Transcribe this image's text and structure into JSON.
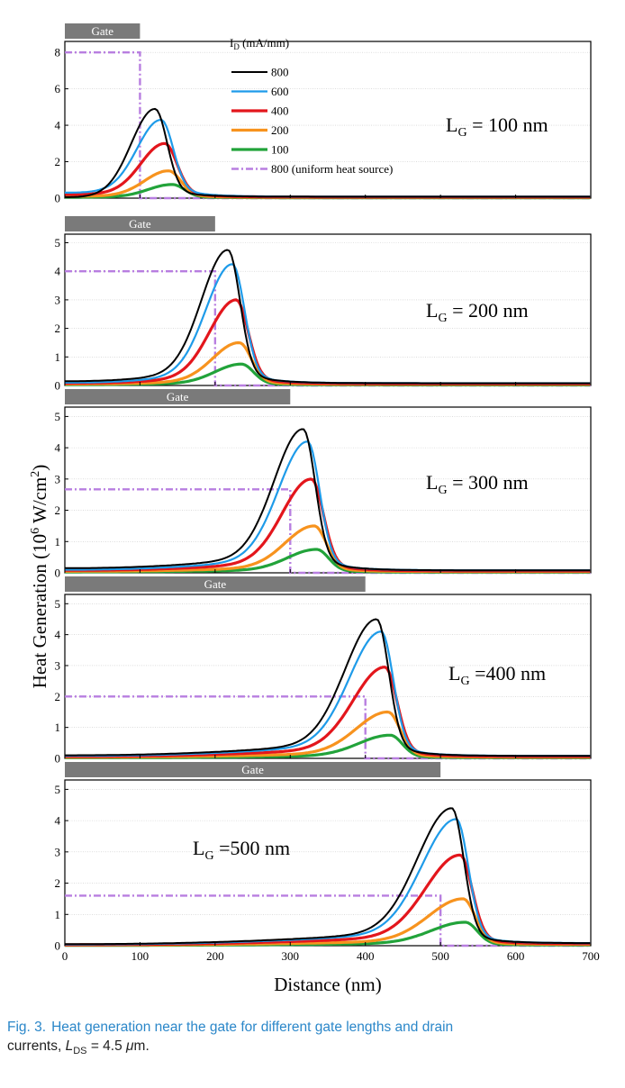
{
  "chart_data": [
    {
      "type": "line",
      "panel_label": "LG = 100 nm",
      "panel_label_main": "L",
      "panel_label_sub": "G",
      "panel_label_rest": " = 100 nm",
      "gate_label": "Gate",
      "gate_length_nm": 100,
      "x_range": [
        0,
        700
      ],
      "ylim": [
        0,
        8.6
      ],
      "y_ticks": [
        "0",
        "2",
        "4",
        "6",
        "8"
      ],
      "y_tick_values": [
        0,
        2,
        4,
        6,
        8
      ],
      "uniform_level": 8.0,
      "peaks": [
        {
          "name": "800",
          "peak_x": 120,
          "peak_y": 4.9,
          "start": 0.05,
          "tail": 0.08
        },
        {
          "name": "600",
          "peak_x": 128,
          "peak_y": 4.3,
          "start": 0.3,
          "tail": 0.08
        },
        {
          "name": "400",
          "peak_x": 133,
          "peak_y": 3.0,
          "start": 0.2,
          "tail": 0.06
        },
        {
          "name": "200",
          "peak_x": 138,
          "peak_y": 1.5,
          "start": 0.1,
          "tail": 0.04
        },
        {
          "name": "100",
          "peak_x": 143,
          "peak_y": 0.75,
          "start": 0.05,
          "tail": 0.02
        }
      ]
    },
    {
      "type": "line",
      "panel_label": "LG = 200 nm",
      "panel_label_main": "L",
      "panel_label_sub": "G",
      "panel_label_rest": " = 200 nm",
      "gate_label": "Gate",
      "gate_length_nm": 200,
      "x_range": [
        0,
        700
      ],
      "ylim": [
        0,
        5.3
      ],
      "y_ticks": [
        "0",
        "1",
        "2",
        "3",
        "4",
        "5"
      ],
      "y_tick_values": [
        0,
        1,
        2,
        3,
        4,
        5
      ],
      "uniform_level": 4.0,
      "peaks": [
        {
          "name": "800",
          "peak_x": 217,
          "peak_y": 4.75,
          "start": 0.15,
          "tail": 0.08
        },
        {
          "name": "600",
          "peak_x": 223,
          "peak_y": 4.25,
          "start": 0.1,
          "tail": 0.08
        },
        {
          "name": "400",
          "peak_x": 228,
          "peak_y": 3.0,
          "start": 0.08,
          "tail": 0.06
        },
        {
          "name": "200",
          "peak_x": 232,
          "peak_y": 1.5,
          "start": 0.05,
          "tail": 0.04
        },
        {
          "name": "100",
          "peak_x": 235,
          "peak_y": 0.75,
          "start": 0.03,
          "tail": 0.02
        }
      ]
    },
    {
      "type": "line",
      "panel_label": "LG = 300 nm",
      "panel_label_main": "L",
      "panel_label_sub": "G",
      "panel_label_rest": " = 300 nm",
      "gate_label": "Gate",
      "gate_length_nm": 300,
      "x_range": [
        0,
        700
      ],
      "ylim": [
        0,
        5.3
      ],
      "y_ticks": [
        "0",
        "1",
        "2",
        "3",
        "4",
        "5"
      ],
      "y_tick_values": [
        0,
        1,
        2,
        3,
        4,
        5
      ],
      "uniform_level": 2.67,
      "peaks": [
        {
          "name": "800",
          "peak_x": 317,
          "peak_y": 4.6,
          "start": 0.15,
          "tail": 0.08
        },
        {
          "name": "600",
          "peak_x": 323,
          "peak_y": 4.2,
          "start": 0.1,
          "tail": 0.08
        },
        {
          "name": "400",
          "peak_x": 328,
          "peak_y": 3.0,
          "start": 0.08,
          "tail": 0.06
        },
        {
          "name": "200",
          "peak_x": 332,
          "peak_y": 1.5,
          "start": 0.05,
          "tail": 0.04
        },
        {
          "name": "100",
          "peak_x": 335,
          "peak_y": 0.75,
          "start": 0.03,
          "tail": 0.02
        }
      ]
    },
    {
      "type": "line",
      "panel_label": "LG =400 nm",
      "panel_label_main": "L",
      "panel_label_sub": "G",
      "panel_label_rest": " =400 nm",
      "gate_label": "Gate",
      "gate_length_nm": 400,
      "x_range": [
        0,
        700
      ],
      "ylim": [
        0,
        5.3
      ],
      "y_ticks": [
        "0",
        "1",
        "2",
        "3",
        "4",
        "5"
      ],
      "y_tick_values": [
        0,
        1,
        2,
        3,
        4,
        5
      ],
      "uniform_level": 2.0,
      "peaks": [
        {
          "name": "800",
          "peak_x": 415,
          "peak_y": 4.5,
          "start": 0.1,
          "tail": 0.08
        },
        {
          "name": "600",
          "peak_x": 421,
          "peak_y": 4.1,
          "start": 0.08,
          "tail": 0.08
        },
        {
          "name": "400",
          "peak_x": 426,
          "peak_y": 2.95,
          "start": 0.06,
          "tail": 0.06
        },
        {
          "name": "200",
          "peak_x": 430,
          "peak_y": 1.5,
          "start": 0.04,
          "tail": 0.04
        },
        {
          "name": "100",
          "peak_x": 433,
          "peak_y": 0.75,
          "start": 0.02,
          "tail": 0.02
        }
      ]
    },
    {
      "type": "line",
      "panel_label": "LG =500 nm",
      "panel_label_main": "L",
      "panel_label_sub": "G",
      "panel_label_rest": " =500 nm",
      "gate_label": "Gate",
      "gate_length_nm": 500,
      "x_range": [
        0,
        700
      ],
      "ylim": [
        0,
        5.3
      ],
      "y_ticks": [
        "0",
        "1",
        "2",
        "3",
        "4",
        "5"
      ],
      "y_tick_values": [
        0,
        1,
        2,
        3,
        4,
        5
      ],
      "uniform_level": 1.6,
      "x_ticks": [
        "0",
        "100",
        "200",
        "300",
        "400",
        "500",
        "600",
        "700"
      ],
      "x_tick_values": [
        0,
        100,
        200,
        300,
        400,
        500,
        600,
        700
      ],
      "peaks": [
        {
          "name": "800",
          "peak_x": 515,
          "peak_y": 4.4,
          "start": 0.05,
          "tail": 0.08
        },
        {
          "name": "600",
          "peak_x": 521,
          "peak_y": 4.05,
          "start": 0.04,
          "tail": 0.08
        },
        {
          "name": "400",
          "peak_x": 526,
          "peak_y": 2.9,
          "start": 0.03,
          "tail": 0.06
        },
        {
          "name": "200",
          "peak_x": 530,
          "peak_y": 1.5,
          "start": 0.02,
          "tail": 0.04
        },
        {
          "name": "100",
          "peak_x": 533,
          "peak_y": 0.75,
          "start": 0.01,
          "tail": 0.02
        }
      ]
    }
  ],
  "axes": {
    "ylabel_main": "Heat Generation (10",
    "ylabel_sup1": "6",
    "ylabel_mid": " W/cm",
    "ylabel_sup2": "2",
    "ylabel_end": ")",
    "xlabel": "Distance (nm)"
  },
  "legend": {
    "title_main": "I",
    "title_sub": "D",
    "title_rest": " (mA/mm)",
    "entries": [
      {
        "label": "800",
        "color": "#000000"
      },
      {
        "label": "600",
        "color": "#1e9be9"
      },
      {
        "label": "400",
        "color": "#e3161c"
      },
      {
        "label": "200",
        "color": "#f7931e"
      },
      {
        "label": "100",
        "color": "#22a33a"
      },
      {
        "label": "800 (uniform heat source)",
        "color": "#b87ee0"
      }
    ]
  },
  "colors": {
    "800": "#000000",
    "600": "#1e9be9",
    "400": "#e3161c",
    "200": "#f7931e",
    "100": "#22a33a",
    "uniform": "#b87ee0",
    "gate": "#7a7a7a"
  },
  "caption": {
    "label": "Fig. 3.",
    "text": "Heat generation near the gate for different gate lengths and drain",
    "text2_a": "currents, ",
    "text2_L": "L",
    "text2_sub": "DS",
    "text2_b": " = 4.5 ",
    "text2_mu": "μ",
    "text2_c": "m."
  }
}
